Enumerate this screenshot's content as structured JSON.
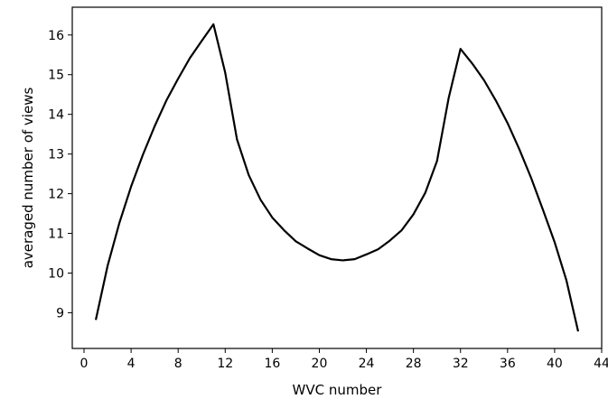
{
  "chart_data": {
    "type": "line",
    "xlabel": "WVC number",
    "ylabel": "averaged number of views",
    "xlim": [
      -1,
      44
    ],
    "ylim": [
      8.1,
      16.7
    ],
    "xticks": [
      0,
      4,
      8,
      12,
      16,
      20,
      24,
      28,
      32,
      36,
      40,
      44
    ],
    "yticks": [
      9,
      10,
      11,
      12,
      13,
      14,
      15,
      16
    ],
    "grid": false,
    "series": [
      {
        "color": "#000000",
        "x": [
          1,
          2,
          3,
          4,
          5,
          6,
          7,
          8,
          9,
          10,
          11,
          12,
          13,
          14,
          15,
          16,
          17,
          18,
          19,
          20,
          21,
          22,
          23,
          24,
          25,
          26,
          27,
          28,
          29,
          30,
          31,
          32,
          33,
          34,
          35,
          36,
          37,
          38,
          39,
          40,
          41,
          42
        ],
        "y": [
          8.82,
          10.18,
          11.26,
          12.18,
          12.98,
          13.7,
          14.35,
          14.9,
          15.42,
          15.85,
          16.27,
          15.05,
          13.37,
          12.47,
          11.85,
          11.4,
          11.08,
          10.8,
          10.62,
          10.45,
          10.35,
          10.32,
          10.35,
          10.47,
          10.6,
          10.82,
          11.08,
          11.48,
          12.02,
          12.82,
          14.42,
          15.65,
          15.28,
          14.86,
          14.35,
          13.78,
          13.12,
          12.4,
          11.6,
          10.78,
          9.82,
          8.53
        ]
      }
    ]
  }
}
